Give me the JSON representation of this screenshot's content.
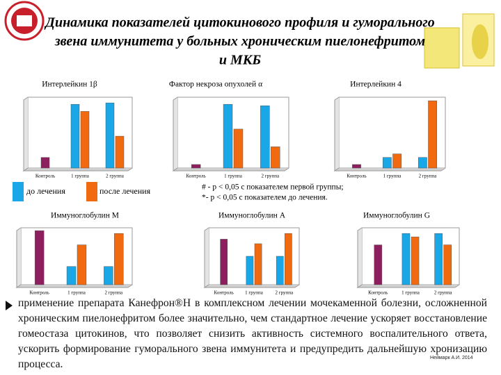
{
  "title": "Динамика показателей цитокинового профиля и гуморального звена иммунитета у больных хроническим пиелонефритом и МКБ",
  "legend": {
    "before": "до лечения",
    "after": "после лечения"
  },
  "notes": [
    "# - р < 0,05 с показателем первой группы;",
    "*- р < 0,05 с показателем до лечения."
  ],
  "conclusion": "применение препарата Канефрон®Н в комплексном лечении мочекаменной болезни, осложненной хроническим пиелонефритом более значительно, чем стандартное лечение ускоряет восстановление гомеостаза цитокинов, что позволяет снизить активность системного воспалительного ответа, ускорить формирование гуморального звена иммунитета и предупредить дальнейшую хронизацию процесса.",
  "signature": "Неймарк А.И. 2014",
  "chart_data": [
    {
      "type": "bar",
      "title": "Интерлейкин 1β",
      "categories": [
        "Контроль",
        "1 группа",
        "2 группа"
      ],
      "ylim": [
        0,
        100
      ],
      "series": [
        {
          "color": "#8e1f5e",
          "values": [
            15,
            null,
            null
          ]
        },
        {
          "name": "до лечения",
          "color": "#1aa7e8",
          "values": [
            null,
            90,
            92
          ]
        },
        {
          "name": "после лечения",
          "color": "#f26a0f",
          "values": [
            null,
            80,
            45
          ]
        }
      ]
    },
    {
      "type": "bar",
      "title": "Фактор некроза опухолей α",
      "categories": [
        "Контроль",
        "1 группа",
        "2 группа"
      ],
      "ylim": [
        0,
        100
      ],
      "series": [
        {
          "color": "#8e1f5e",
          "values": [
            5,
            null,
            null
          ]
        },
        {
          "name": "до лечения",
          "color": "#1aa7e8",
          "values": [
            null,
            90,
            88
          ]
        },
        {
          "name": "после лечения",
          "color": "#f26a0f",
          "values": [
            null,
            55,
            30
          ]
        }
      ]
    },
    {
      "type": "bar",
      "title": "Интерлейкин 4",
      "categories": [
        "Контроль",
        "1 группа",
        "2 группа"
      ],
      "ylim": [
        0,
        100
      ],
      "series": [
        {
          "color": "#8e1f5e",
          "values": [
            5,
            null,
            null
          ]
        },
        {
          "name": "до лечения",
          "color": "#1aa7e8",
          "values": [
            null,
            15,
            15
          ]
        },
        {
          "name": "после лечения",
          "color": "#f26a0f",
          "values": [
            null,
            20,
            95
          ]
        }
      ]
    },
    {
      "type": "bar",
      "title": "Иммуноглобулин М",
      "categories": [
        "Контроль",
        "1 группа",
        "2 группа"
      ],
      "ylim": [
        0,
        100
      ],
      "series": [
        {
          "color": "#8e1f5e",
          "values": [
            95,
            null,
            null
          ]
        },
        {
          "name": "до лечения",
          "color": "#1aa7e8",
          "values": [
            null,
            32,
            32
          ]
        },
        {
          "name": "после лечения",
          "color": "#f26a0f",
          "values": [
            null,
            70,
            90
          ]
        }
      ]
    },
    {
      "type": "bar",
      "title": "Иммуноглобулин А",
      "categories": [
        "Контроль",
        "1 группа",
        "2 группа"
      ],
      "ylim": [
        0,
        100
      ],
      "series": [
        {
          "color": "#8e1f5e",
          "values": [
            80,
            null,
            null
          ]
        },
        {
          "name": "до лечения",
          "color": "#1aa7e8",
          "values": [
            null,
            50,
            50
          ]
        },
        {
          "name": "после лечения",
          "color": "#f26a0f",
          "values": [
            null,
            72,
            90
          ]
        }
      ]
    },
    {
      "type": "bar",
      "title": "Иммуноглобулин G",
      "categories": [
        "Контроль",
        "1 группа",
        "2 группа"
      ],
      "ylim": [
        0,
        100
      ],
      "series": [
        {
          "color": "#8e1f5e",
          "values": [
            70,
            null,
            null
          ]
        },
        {
          "name": "до лечения",
          "color": "#1aa7e8",
          "values": [
            null,
            90,
            90
          ]
        },
        {
          "name": "после лечения",
          "color": "#f26a0f",
          "values": [
            null,
            84,
            70
          ]
        }
      ]
    }
  ]
}
